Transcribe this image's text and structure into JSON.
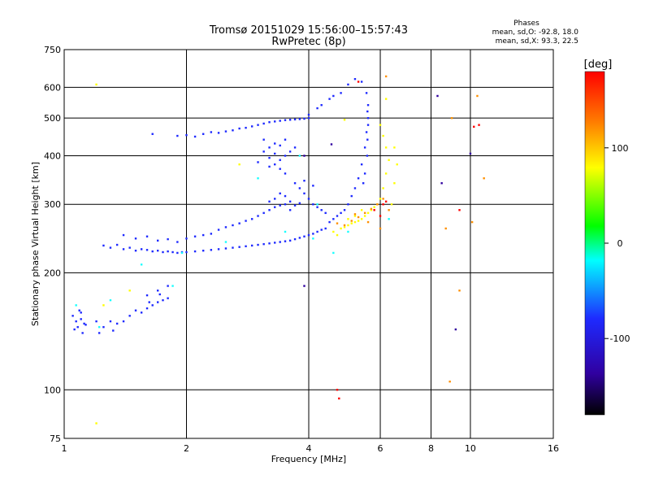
{
  "chart_data": {
    "type": "scatter",
    "title": "Tromsø 20151029 15:56:00–15:57:43",
    "subtitle": "RwPretec (8p)",
    "xlabel": "Frequency [MHz]",
    "ylabel": "Stationary phase Virtual Height [km]",
    "x_scale": "log",
    "y_scale": "log",
    "xlim": [
      1,
      16
    ],
    "ylim": [
      75,
      750
    ],
    "x_ticks": [
      1,
      2,
      4,
      6,
      8,
      10,
      16
    ],
    "y_ticks": [
      75,
      100,
      200,
      300,
      400,
      500,
      600,
      750
    ],
    "grid": true,
    "stats": {
      "heading": "Phases",
      "line1": "mean, sd,O:  -92.8, 18.0",
      "line2": "mean, sd,X:  93.3, 22.5"
    },
    "colorbar": {
      "label": "[deg]",
      "range": [
        -180,
        180
      ],
      "ticks": [
        100,
        0,
        -100
      ]
    },
    "series": [
      {
        "color": "#1e2aff",
        "points": [
          [
            1.05,
            155
          ],
          [
            1.07,
            150
          ],
          [
            1.08,
            145
          ],
          [
            1.09,
            160
          ],
          [
            1.1,
            152
          ],
          [
            1.11,
            140
          ],
          [
            1.12,
            148
          ],
          [
            1.06,
            143
          ],
          [
            1.1,
            158
          ],
          [
            1.13,
            147
          ],
          [
            1.2,
            150
          ],
          [
            1.22,
            140
          ],
          [
            1.25,
            145
          ],
          [
            1.3,
            150
          ],
          [
            1.32,
            142
          ],
          [
            1.35,
            148
          ],
          [
            1.4,
            150
          ],
          [
            1.45,
            155
          ],
          [
            1.5,
            160
          ],
          [
            1.55,
            158
          ],
          [
            1.6,
            162
          ],
          [
            1.65,
            165
          ],
          [
            1.7,
            168
          ],
          [
            1.75,
            170
          ],
          [
            1.8,
            172
          ],
          [
            1.6,
            175
          ],
          [
            1.7,
            180
          ],
          [
            1.8,
            185
          ],
          [
            1.62,
            168
          ],
          [
            1.72,
            176
          ],
          [
            1.25,
            235
          ],
          [
            1.3,
            232
          ],
          [
            1.35,
            236
          ],
          [
            1.4,
            230
          ],
          [
            1.45,
            232
          ],
          [
            1.5,
            228
          ],
          [
            1.55,
            230
          ],
          [
            1.6,
            229
          ],
          [
            1.65,
            227
          ],
          [
            1.7,
            228
          ],
          [
            1.75,
            226
          ],
          [
            1.8,
            227
          ],
          [
            1.85,
            226
          ],
          [
            1.9,
            225
          ],
          [
            1.95,
            226
          ],
          [
            2.0,
            226
          ],
          [
            2.1,
            227
          ],
          [
            2.2,
            228
          ],
          [
            2.3,
            229
          ],
          [
            2.4,
            230
          ],
          [
            2.5,
            231
          ],
          [
            2.6,
            232
          ],
          [
            2.7,
            233
          ],
          [
            2.8,
            234
          ],
          [
            2.9,
            235
          ],
          [
            3.0,
            236
          ],
          [
            3.1,
            237
          ],
          [
            3.2,
            238
          ],
          [
            3.3,
            239
          ],
          [
            3.4,
            240
          ],
          [
            3.5,
            241
          ],
          [
            3.6,
            242
          ],
          [
            3.7,
            244
          ],
          [
            3.8,
            246
          ],
          [
            3.9,
            248
          ],
          [
            4.0,
            250
          ],
          [
            4.1,
            252
          ],
          [
            4.2,
            255
          ],
          [
            4.3,
            258
          ],
          [
            4.4,
            260
          ],
          [
            1.4,
            250
          ],
          [
            1.5,
            245
          ],
          [
            1.6,
            248
          ],
          [
            1.7,
            242
          ],
          [
            1.8,
            244
          ],
          [
            1.9,
            240
          ],
          [
            2.0,
            245
          ],
          [
            2.1,
            248
          ],
          [
            2.2,
            250
          ],
          [
            2.3,
            252
          ],
          [
            2.4,
            258
          ],
          [
            2.5,
            262
          ],
          [
            2.6,
            265
          ],
          [
            2.7,
            268
          ],
          [
            2.8,
            272
          ],
          [
            2.9,
            275
          ],
          [
            3.0,
            280
          ],
          [
            3.1,
            285
          ],
          [
            3.2,
            290
          ],
          [
            3.3,
            295
          ],
          [
            3.4,
            298
          ],
          [
            3.5,
            300
          ],
          [
            3.6,
            305
          ],
          [
            3.7,
            298
          ],
          [
            3.8,
            302
          ],
          [
            3.3,
            310
          ],
          [
            3.4,
            320
          ],
          [
            3.5,
            315
          ],
          [
            3.2,
            305
          ],
          [
            3.6,
            290
          ],
          [
            1.65,
            455
          ],
          [
            1.9,
            450
          ],
          [
            2.0,
            452
          ],
          [
            2.1,
            448
          ],
          [
            2.2,
            455
          ],
          [
            2.3,
            460
          ],
          [
            2.4,
            458
          ],
          [
            2.5,
            462
          ],
          [
            2.6,
            465
          ],
          [
            2.7,
            470
          ],
          [
            2.8,
            472
          ],
          [
            2.9,
            476
          ],
          [
            3.0,
            480
          ],
          [
            3.1,
            484
          ],
          [
            3.2,
            488
          ],
          [
            3.3,
            490
          ],
          [
            3.4,
            492
          ],
          [
            3.5,
            494
          ],
          [
            3.6,
            495
          ],
          [
            3.7,
            496
          ],
          [
            3.8,
            497
          ],
          [
            3.9,
            498
          ],
          [
            4.0,
            500
          ],
          [
            3.2,
            420
          ],
          [
            3.3,
            430
          ],
          [
            3.4,
            425
          ],
          [
            3.5,
            440
          ],
          [
            3.1,
            410
          ],
          [
            3.2,
            395
          ],
          [
            3.3,
            405
          ],
          [
            3.4,
            390
          ],
          [
            3.5,
            400
          ],
          [
            3.3,
            380
          ],
          [
            3.4,
            370
          ],
          [
            3.2,
            375
          ],
          [
            3.5,
            360
          ],
          [
            3.1,
            440
          ],
          [
            3.0,
            385
          ],
          [
            3.6,
            410
          ],
          [
            3.7,
            420
          ],
          [
            4.5,
            270
          ],
          [
            4.6,
            275
          ],
          [
            4.7,
            280
          ],
          [
            4.8,
            285
          ],
          [
            4.9,
            290
          ],
          [
            5.0,
            300
          ],
          [
            5.1,
            315
          ],
          [
            5.2,
            330
          ],
          [
            5.3,
            350
          ],
          [
            5.4,
            380
          ],
          [
            5.5,
            420
          ],
          [
            5.55,
            460
          ],
          [
            5.6,
            500
          ],
          [
            5.6,
            540
          ],
          [
            5.55,
            580
          ],
          [
            5.4,
            620
          ],
          [
            5.2,
            630
          ],
          [
            5.0,
            610
          ],
          [
            4.8,
            580
          ],
          [
            4.5,
            560
          ],
          [
            4.2,
            530
          ],
          [
            4.0,
            510
          ],
          [
            4.3,
            540
          ],
          [
            4.6,
            570
          ],
          [
            5.58,
            440
          ],
          [
            5.57,
            400
          ],
          [
            5.5,
            360
          ],
          [
            5.45,
            340
          ],
          [
            5.6,
            480
          ],
          [
            5.58,
            520
          ],
          [
            3.8,
            330
          ],
          [
            3.9,
            320
          ],
          [
            4.0,
            310
          ],
          [
            4.1,
            300
          ],
          [
            4.2,
            295
          ],
          [
            4.3,
            290
          ],
          [
            4.4,
            285
          ],
          [
            3.7,
            340
          ],
          [
            3.9,
            345
          ],
          [
            4.1,
            335
          ]
        ]
      },
      {
        "color": "#19ffff",
        "points": [
          [
            1.22,
            145
          ],
          [
            1.3,
            170
          ],
          [
            1.55,
            210
          ],
          [
            1.95,
            225
          ],
          [
            2.5,
            240
          ],
          [
            3.5,
            255
          ],
          [
            4.1,
            245
          ],
          [
            4.2,
            300
          ],
          [
            1.85,
            185
          ],
          [
            6.3,
            275
          ],
          [
            3.0,
            350
          ],
          [
            3.8,
            400
          ],
          [
            4.6,
            225
          ],
          [
            5.0,
            255
          ],
          [
            1.07,
            165
          ]
        ]
      },
      {
        "color": "#ffff00",
        "points": [
          [
            4.8,
            260
          ],
          [
            4.9,
            262
          ],
          [
            5.0,
            265
          ],
          [
            5.1,
            268
          ],
          [
            5.2,
            270
          ],
          [
            5.3,
            272
          ],
          [
            5.4,
            275
          ],
          [
            5.5,
            280
          ],
          [
            5.6,
            285
          ],
          [
            5.7,
            290
          ],
          [
            5.8,
            295
          ],
          [
            5.9,
            300
          ],
          [
            6.0,
            310
          ],
          [
            6.1,
            330
          ],
          [
            6.2,
            360
          ],
          [
            6.3,
            390
          ],
          [
            6.2,
            420
          ],
          [
            6.1,
            450
          ],
          [
            6.0,
            480
          ],
          [
            6.4,
            300
          ],
          [
            6.5,
            340
          ],
          [
            6.6,
            380
          ],
          [
            6.5,
            420
          ],
          [
            4.6,
            255
          ],
          [
            4.7,
            250
          ],
          [
            5.0,
            275
          ],
          [
            5.2,
            280
          ],
          [
            5.4,
            290
          ],
          [
            1.2,
            610
          ],
          [
            1.2,
            82
          ],
          [
            1.25,
            165
          ],
          [
            2.7,
            380
          ],
          [
            1.45,
            180
          ],
          [
            4.9,
            495
          ],
          [
            6.2,
            560
          ]
        ]
      },
      {
        "color": "#ff9000",
        "points": [
          [
            4.9,
            265
          ],
          [
            5.1,
            272
          ],
          [
            5.3,
            278
          ],
          [
            5.5,
            285
          ],
          [
            5.7,
            292
          ],
          [
            5.9,
            300
          ],
          [
            6.1,
            310
          ],
          [
            6.3,
            290
          ],
          [
            5.2,
            283
          ],
          [
            5.6,
            270
          ],
          [
            6.0,
            260
          ],
          [
            4.7,
            268
          ],
          [
            6.2,
            640
          ],
          [
            8.9,
            105
          ],
          [
            10.8,
            350
          ],
          [
            8.7,
            260
          ],
          [
            10.4,
            570
          ],
          [
            9.4,
            180
          ],
          [
            9.0,
            500
          ],
          [
            10.1,
            270
          ]
        ]
      },
      {
        "color": "#ff0000",
        "points": [
          [
            5.8,
            290
          ],
          [
            6.0,
            280
          ],
          [
            6.1,
            300
          ],
          [
            4.7,
            100
          ],
          [
            4.75,
            95
          ],
          [
            10.2,
            475
          ],
          [
            5.3,
            620
          ],
          [
            9.4,
            290
          ],
          [
            10.5,
            480
          ],
          [
            6.2,
            305
          ]
        ]
      },
      {
        "color": "#3000a0",
        "points": [
          [
            3.9,
            185
          ],
          [
            4.55,
            428
          ],
          [
            8.3,
            570
          ],
          [
            9.2,
            143
          ],
          [
            3.9,
            400
          ],
          [
            10.0,
            405
          ],
          [
            8.5,
            340
          ]
        ]
      }
    ]
  }
}
